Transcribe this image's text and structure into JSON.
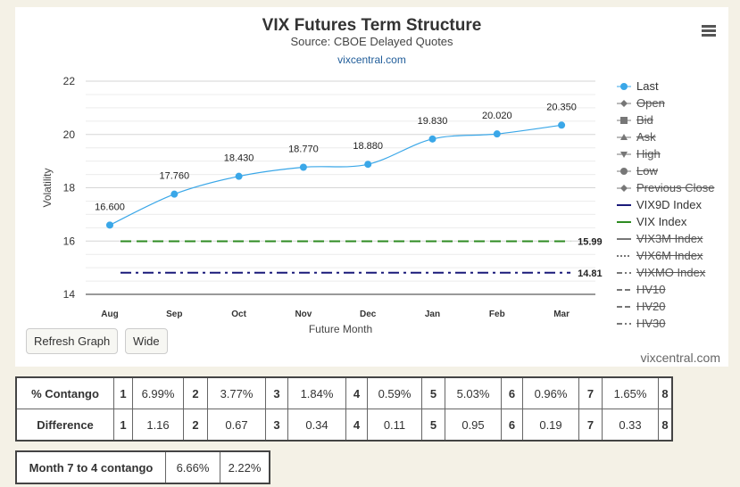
{
  "header": {
    "title": "VIX Futures Term Structure",
    "subtitle": "Source: CBOE Delayed Quotes",
    "site_link": "vixcentral.com"
  },
  "buttons": {
    "refresh": "Refresh Graph",
    "wide": "Wide"
  },
  "watermark": "vixcentral.com",
  "legend": [
    {
      "label": "Last",
      "enabled": true,
      "color": "#3aa7e8",
      "icon": "circle-marker-icon"
    },
    {
      "label": "Open",
      "enabled": false,
      "color": "#777777",
      "icon": "diamond-marker-icon"
    },
    {
      "label": "Bid",
      "enabled": false,
      "color": "#777777",
      "icon": "square-marker-icon"
    },
    {
      "label": "Ask",
      "enabled": false,
      "color": "#777777",
      "icon": "triangle-marker-icon"
    },
    {
      "label": "High",
      "enabled": false,
      "color": "#777777",
      "icon": "triangle-down-marker-icon"
    },
    {
      "label": "Low",
      "enabled": false,
      "color": "#777777",
      "icon": "circle-marker-icon"
    },
    {
      "label": "Previous Close",
      "enabled": false,
      "color": "#777777",
      "icon": "diamond-marker-icon"
    },
    {
      "label": "VIX9D Index",
      "enabled": true,
      "color": "#1a1a7a",
      "icon": "solid-line-icon"
    },
    {
      "label": "VIX Index",
      "enabled": true,
      "color": "#2e8b22",
      "icon": "solid-line-icon"
    },
    {
      "label": "VIX3M Index",
      "enabled": false,
      "color": "#777777",
      "icon": "solid-line-icon"
    },
    {
      "label": "VIX6M Index",
      "enabled": false,
      "color": "#777777",
      "icon": "dotted-line-icon"
    },
    {
      "label": "VIXMO Index",
      "enabled": false,
      "color": "#777777",
      "icon": "dashdot-line-icon"
    },
    {
      "label": "HV10",
      "enabled": false,
      "color": "#777777",
      "icon": "dashed-line-icon"
    },
    {
      "label": "HV20",
      "enabled": false,
      "color": "#777777",
      "icon": "dashed-line-icon"
    },
    {
      "label": "HV30",
      "enabled": false,
      "color": "#777777",
      "icon": "dashdot-line-icon"
    }
  ],
  "chart_data": {
    "type": "line",
    "title": "VIX Futures Term Structure",
    "subtitle": "Source: CBOE Delayed Quotes",
    "xlabel": "Future Month",
    "ylabel": "Volatility",
    "categories": [
      "Aug",
      "Sep",
      "Oct",
      "Nov",
      "Dec",
      "Jan",
      "Feb",
      "Mar"
    ],
    "ylim": [
      14,
      22
    ],
    "yticks": [
      14,
      16,
      18,
      20,
      22
    ],
    "grid": true,
    "legend_position": "right",
    "series": [
      {
        "name": "Last",
        "values": [
          16.6,
          17.76,
          18.43,
          18.77,
          18.88,
          19.83,
          20.02,
          20.35
        ],
        "labels": [
          "16.600",
          "17.760",
          "18.430",
          "18.770",
          "18.880",
          "19.830",
          "20.020",
          "20.350"
        ],
        "color": "#3aa7e8",
        "style": "smooth-line-markers"
      },
      {
        "name": "VIX Index",
        "value": 15.99,
        "label": "15.99",
        "color": "#2e8b22",
        "style": "dashed"
      },
      {
        "name": "VIX9D Index",
        "value": 14.81,
        "label": "14.81",
        "color": "#1a1a7a",
        "style": "dashdot"
      }
    ]
  },
  "contango_table": {
    "rows": [
      {
        "label": "% Contango",
        "cells": [
          [
            "1",
            "6.99%"
          ],
          [
            "2",
            "3.77%"
          ],
          [
            "3",
            "1.84%"
          ],
          [
            "4",
            "0.59%"
          ],
          [
            "5",
            "5.03%"
          ],
          [
            "6",
            "0.96%"
          ],
          [
            "7",
            "1.65%"
          ],
          [
            "8",
            ""
          ]
        ]
      },
      {
        "label": "Difference",
        "cells": [
          [
            "1",
            "1.16"
          ],
          [
            "2",
            "0.67"
          ],
          [
            "3",
            "0.34"
          ],
          [
            "4",
            "0.11"
          ],
          [
            "5",
            "0.95"
          ],
          [
            "6",
            "0.19"
          ],
          [
            "7",
            "0.33"
          ],
          [
            "8",
            ""
          ]
        ]
      }
    ]
  },
  "month_contango": {
    "label": "Month 7 to 4 contango",
    "percent": "6.66%",
    "percent2": "2.22%"
  }
}
